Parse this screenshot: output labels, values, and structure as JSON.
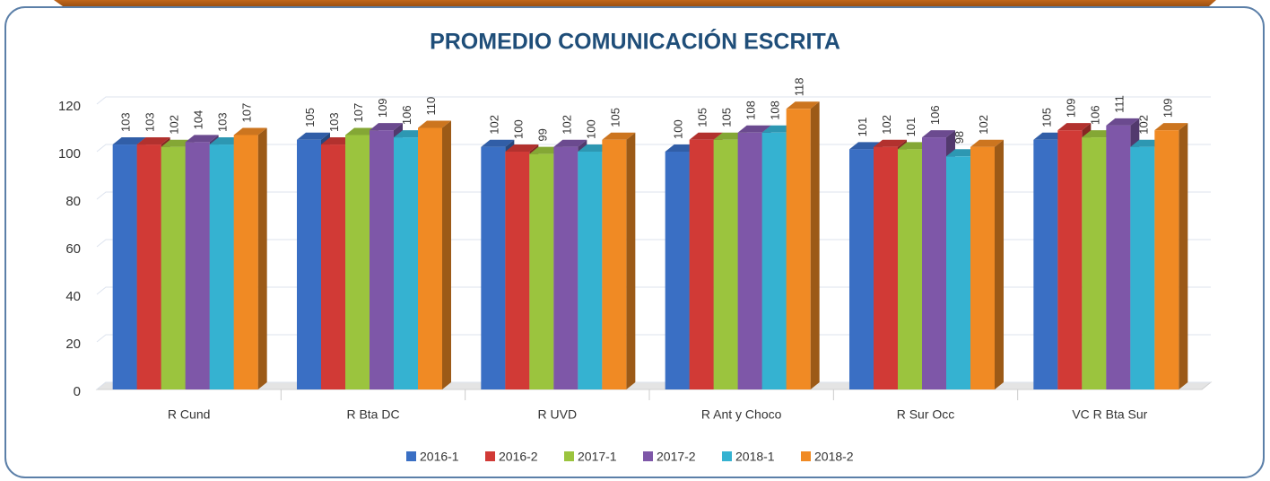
{
  "chart_data": {
    "type": "bar3d",
    "title": "PROMEDIO COMUNICACIÓN ESCRITA",
    "categories": [
      "R Cund",
      "R Bta DC",
      "R UVD",
      "R Ant y Choco",
      "R Sur Occ",
      "VC R Bta Sur"
    ],
    "series": [
      {
        "name": "2016-1",
        "color": "#3a6fc4",
        "values": [
          103,
          105,
          102,
          100,
          101,
          105
        ]
      },
      {
        "name": "2016-2",
        "color": "#d13a36",
        "values": [
          103,
          103,
          100,
          105,
          102,
          109
        ]
      },
      {
        "name": "2017-1",
        "color": "#9bc43e",
        "values": [
          102,
          107,
          99,
          105,
          101,
          106
        ]
      },
      {
        "name": "2017-2",
        "color": "#7e57a8",
        "values": [
          104,
          109,
          102,
          108,
          106,
          111
        ]
      },
      {
        "name": "2018-1",
        "color": "#35b2d1",
        "values": [
          103,
          106,
          100,
          108,
          98,
          102
        ]
      },
      {
        "name": "2018-2",
        "color": "#f08a24",
        "values": [
          107,
          110,
          105,
          118,
          102,
          109
        ]
      }
    ],
    "ylim": [
      0,
      120
    ],
    "yticks": [
      0,
      20,
      40,
      60,
      80,
      100,
      120
    ],
    "grid": true,
    "legend": "bottom"
  }
}
